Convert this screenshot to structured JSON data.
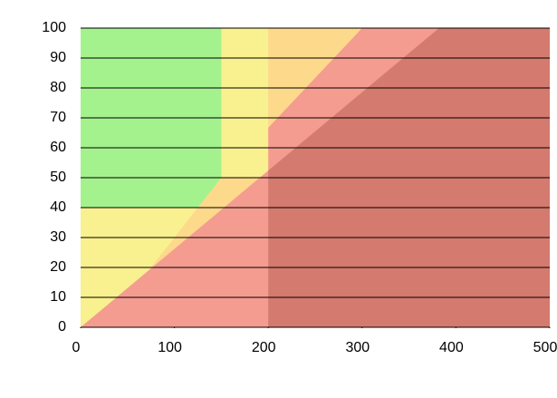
{
  "chart_data": {
    "type": "area",
    "xlim": [
      0,
      500
    ],
    "ylim": [
      0,
      100
    ],
    "xticks": [
      0,
      100,
      200,
      300,
      400,
      500
    ],
    "yticks": [
      0,
      10,
      20,
      30,
      40,
      50,
      60,
      70,
      80,
      90,
      100
    ],
    "grid": true,
    "grid_color": "#000000",
    "series": [
      {
        "color": "#fdd98b",
        "x": [
          0,
          300,
          300,
          0
        ],
        "values": [
          0,
          0,
          100,
          100
        ]
      },
      {
        "color": "#f9f08f",
        "x": [
          0,
          25,
          150,
          200,
          200,
          0
        ],
        "values": [
          0,
          0,
          50,
          50,
          100,
          100
        ]
      },
      {
        "color": "#a4f28e",
        "x": [
          0,
          125,
          150,
          150,
          0
        ],
        "values": [
          40,
          40,
          50,
          100,
          100
        ]
      },
      {
        "color": "#f49c90",
        "x": [
          0,
          500,
          500,
          300,
          200,
          200
        ],
        "values": [
          0,
          0,
          100,
          100,
          66.7,
          52.4
        ]
      },
      {
        "color": "#d47a6e",
        "x": [
          200,
          500,
          500,
          382,
          200
        ],
        "values": [
          0,
          0,
          100,
          100,
          52.4
        ]
      }
    ]
  }
}
